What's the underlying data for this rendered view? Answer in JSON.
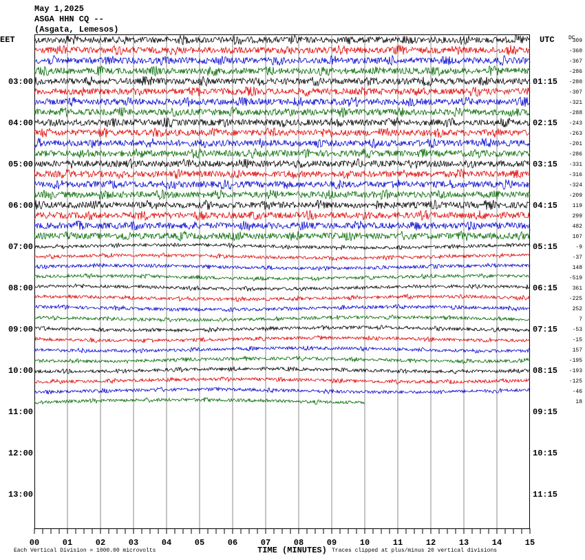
{
  "header": {
    "date": "May 1,2025",
    "station": "ASGA HHN CQ --",
    "location": "(Asgata, Lemesos)"
  },
  "left_axis": {
    "title": "EET",
    "labels": [
      "03:00",
      "04:00",
      "05:00",
      "06:00",
      "07:00",
      "08:00",
      "09:00",
      "10:00",
      "11:00",
      "12:00",
      "13:00"
    ]
  },
  "right_axis": {
    "title": "UTC",
    "labels": [
      "01:15",
      "02:15",
      "03:15",
      "04:15",
      "05:15",
      "06:15",
      "07:15",
      "08:15",
      "09:15",
      "10:15",
      "11:15"
    ]
  },
  "dc_title": "DC",
  "dc_offsets": [
    309,
    -360,
    -367,
    -286,
    -280,
    -307,
    -321,
    -288,
    -243,
    -263,
    -201,
    -286,
    -331,
    -316,
    -324,
    -209,
    119,
    299,
    482,
    107,
    -9,
    -37,
    148,
    -519,
    361,
    -225,
    252,
    7,
    -53,
    -15,
    157,
    -195,
    -193,
    -125,
    -46,
    18
  ],
  "x_axis": {
    "title": "TIME (MINUTES)",
    "ticks": [
      "00",
      "01",
      "02",
      "03",
      "04",
      "05",
      "06",
      "07",
      "08",
      "09",
      "10",
      "11",
      "12",
      "13",
      "14",
      "15"
    ]
  },
  "footer": {
    "scale_note": "Each Vertical Division = 1000.00 microvolts",
    "clip_note": "Traces clipped at plus/minus 20 vertical divisions"
  }
}
